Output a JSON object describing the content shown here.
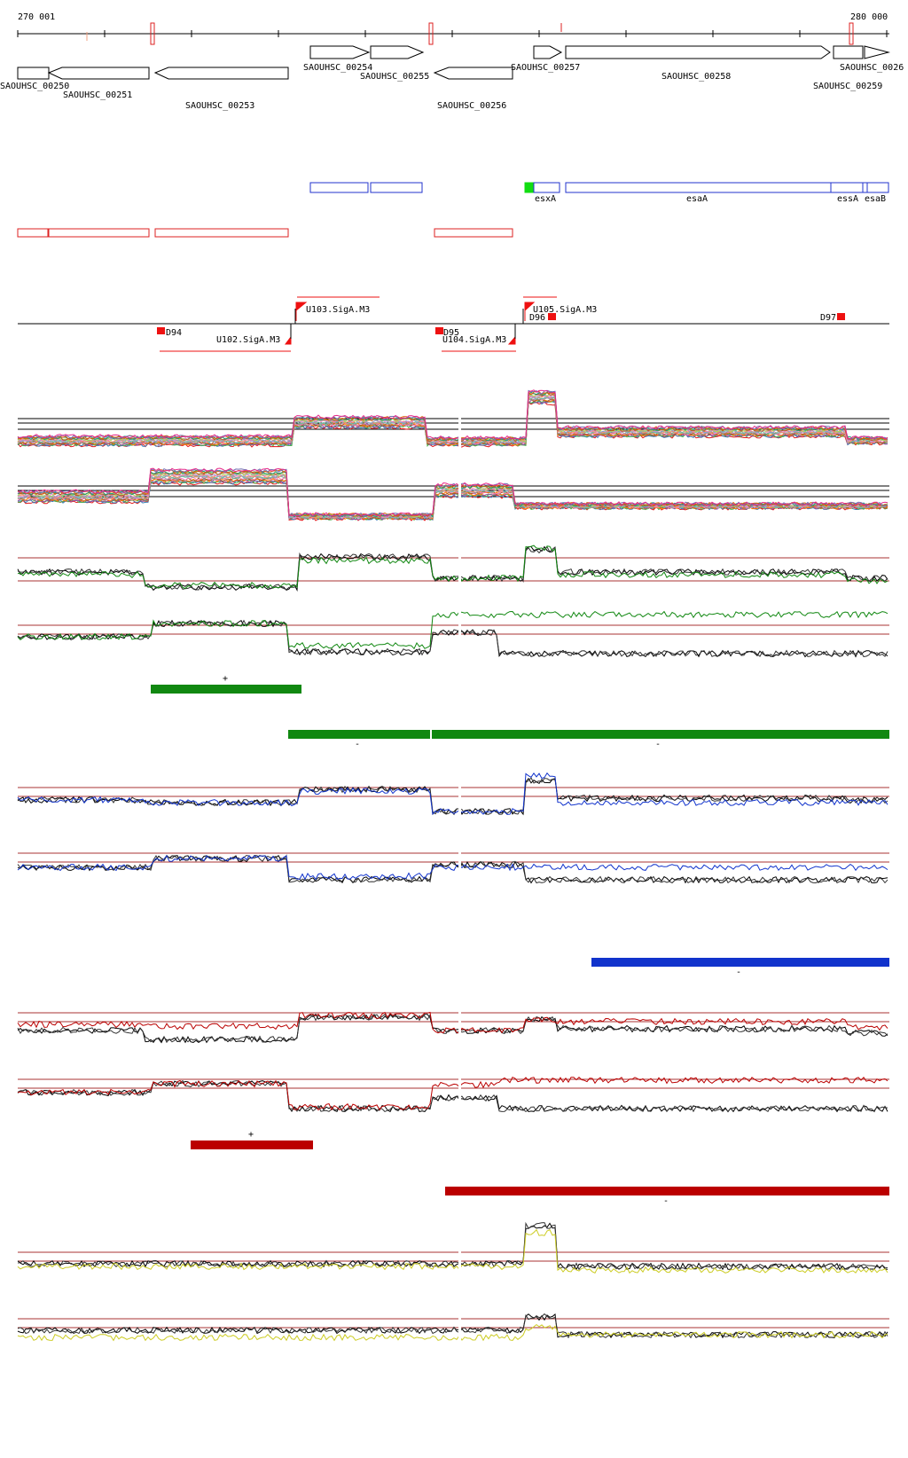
{
  "coordinates": {
    "start_label": "270 001",
    "end_label": "280 000"
  },
  "genes": [
    {
      "label": "SAOUHSC_00250"
    },
    {
      "label": "SAOUHSC_00251"
    },
    {
      "label": "SAOUHSC_00253"
    },
    {
      "label": "SAOUHSC_00254"
    },
    {
      "label": "SAOUHSC_00255"
    },
    {
      "label": "SAOUHSC_00256"
    },
    {
      "label": "SAOUHSC_00257"
    },
    {
      "label": "SAOUHSC_00258"
    },
    {
      "label": "SAOUHSC_0026"
    },
    {
      "label": "SAOUHSC_00259"
    }
  ],
  "annotations": [
    {
      "label": "esxA"
    },
    {
      "label": "esaA"
    },
    {
      "label": "essA"
    },
    {
      "label": "esaB"
    }
  ],
  "promoters": [
    {
      "label": "U103.SigA.M3"
    },
    {
      "label": "U102.SigA.M3"
    },
    {
      "label": "U105.SigA.M3"
    },
    {
      "label": "U104.SigA.M3"
    }
  ],
  "terminators": [
    {
      "label": "D94"
    },
    {
      "label": "D95"
    },
    {
      "label": "D96"
    },
    {
      "label": "D97"
    }
  ],
  "segment_signs": {
    "green_plus": "+",
    "green_minus_1": "-",
    "green_minus_2": "-",
    "blue_minus": "-",
    "red_plus": "+",
    "red_minus": "-"
  },
  "colors": {
    "gene_outline": "#000000",
    "annotation_blue": "#2233cc",
    "annotation_red": "#dd2222",
    "marker_green": "#11dd11",
    "promoter_red": "#ee1111",
    "track_green": "#118811",
    "track_blue": "#1133cc",
    "track_red": "#bb0000",
    "track_yellow": "#cccc22",
    "threshold_line": "#aa3333"
  }
}
